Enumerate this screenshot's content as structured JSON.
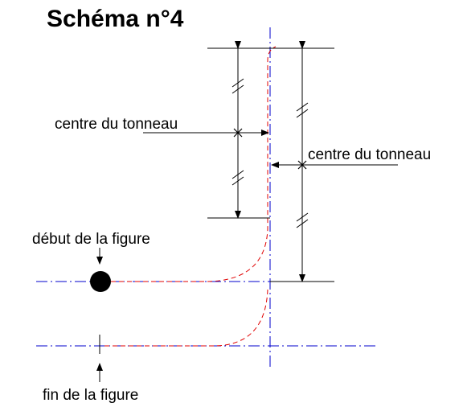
{
  "title": "Schéma n°4",
  "labels": {
    "center_upper": "centre du tonneau",
    "center_lower": "centre du tonneau",
    "start": "début de la figure",
    "end": "fin de la figure"
  },
  "colors": {
    "axis": "#0000cc",
    "trajectory": "#e00000",
    "ink": "#000000"
  }
}
